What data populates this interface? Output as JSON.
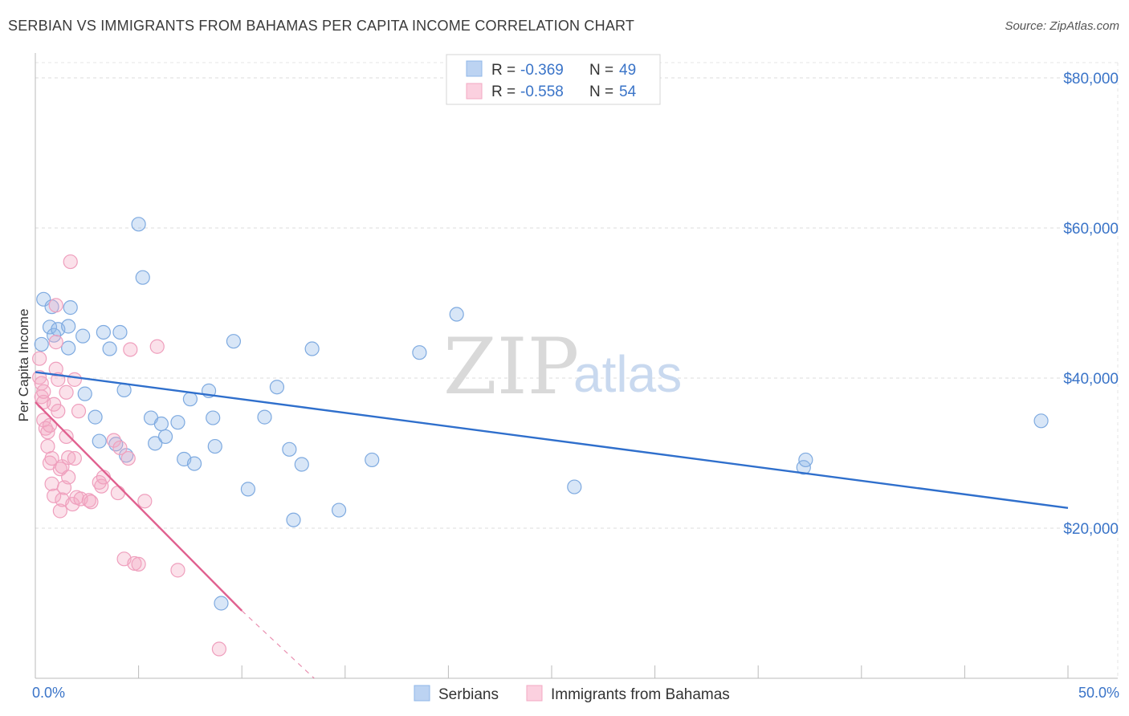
{
  "header": {
    "title": "SERBIAN VS IMMIGRANTS FROM BAHAMAS PER CAPITA INCOME CORRELATION CHART",
    "source": "Source: ZipAtlas.com"
  },
  "watermark": {
    "zip": "ZIP",
    "atlas": "atlas"
  },
  "legend": {
    "r_label": "R =",
    "n_label": "N =",
    "rows": [
      {
        "r": "-0.369",
        "n": "49",
        "color": "#8fb7e8"
      },
      {
        "r": "-0.558",
        "n": "54",
        "color": "#f3a9c3"
      }
    ]
  },
  "chart_data": {
    "type": "scatter",
    "title": "SERBIAN VS IMMIGRANTS FROM BAHAMAS PER CAPITA INCOME CORRELATION CHART",
    "xlabel": "",
    "ylabel": "Per Capita Income",
    "xlim": [
      0,
      50
    ],
    "ylim": [
      0,
      80000
    ],
    "x_tick_labels": [
      "0.0%",
      "50.0%"
    ],
    "y_ticks": [
      20000,
      40000,
      60000,
      80000
    ],
    "y_tick_labels": [
      "$20,000",
      "$40,000",
      "$60,000",
      "$80,000"
    ],
    "grid": true,
    "legend_placement": "top-center",
    "series": [
      {
        "name": "Serbians",
        "color": "#6fa3e0",
        "trend": {
          "x": [
            0,
            50
          ],
          "y": [
            40800,
            22700
          ],
          "color": "#2f6fcc"
        },
        "points": [
          [
            0.3,
            44500
          ],
          [
            0.4,
            50500
          ],
          [
            0.7,
            46800
          ],
          [
            0.8,
            49500
          ],
          [
            0.9,
            45700
          ],
          [
            1.1,
            46500
          ],
          [
            1.6,
            46900
          ],
          [
            1.7,
            49400
          ],
          [
            1.6,
            44000
          ],
          [
            2.3,
            45600
          ],
          [
            2.4,
            37900
          ],
          [
            2.9,
            34800
          ],
          [
            3.1,
            31600
          ],
          [
            3.3,
            46100
          ],
          [
            3.6,
            43900
          ],
          [
            3.9,
            31200
          ],
          [
            4.1,
            46100
          ],
          [
            4.3,
            38400
          ],
          [
            4.4,
            29700
          ],
          [
            5.0,
            60500
          ],
          [
            5.2,
            53400
          ],
          [
            5.6,
            34700
          ],
          [
            5.8,
            31300
          ],
          [
            6.1,
            33900
          ],
          [
            6.3,
            32200
          ],
          [
            6.9,
            34100
          ],
          [
            7.2,
            29200
          ],
          [
            7.5,
            37200
          ],
          [
            7.7,
            28600
          ],
          [
            8.4,
            38300
          ],
          [
            8.6,
            34700
          ],
          [
            8.7,
            30900
          ],
          [
            9.0,
            10000
          ],
          [
            9.6,
            44900
          ],
          [
            10.3,
            25200
          ],
          [
            11.1,
            34800
          ],
          [
            11.7,
            38800
          ],
          [
            12.3,
            30500
          ],
          [
            12.5,
            21100
          ],
          [
            12.9,
            28500
          ],
          [
            13.4,
            43900
          ],
          [
            14.7,
            22400
          ],
          [
            16.3,
            29100
          ],
          [
            18.6,
            43400
          ],
          [
            20.4,
            48500
          ],
          [
            26.1,
            25500
          ],
          [
            37.2,
            28100
          ],
          [
            37.3,
            29100
          ],
          [
            48.7,
            34300
          ]
        ]
      },
      {
        "name": "Immigrants from Bahamas",
        "color": "#f0a3bf",
        "trend": {
          "x": [
            0,
            10
          ],
          "y": [
            36800,
            9000
          ],
          "dash_to": [
            13.5,
            0
          ],
          "color": "#e0608f"
        },
        "points": [
          [
            0.2,
            42600
          ],
          [
            0.2,
            40100
          ],
          [
            0.3,
            39300
          ],
          [
            0.3,
            37500
          ],
          [
            0.4,
            36800
          ],
          [
            0.4,
            38200
          ],
          [
            0.4,
            34400
          ],
          [
            0.5,
            33300
          ],
          [
            0.6,
            32800
          ],
          [
            0.6,
            30900
          ],
          [
            0.7,
            28700
          ],
          [
            0.7,
            33700
          ],
          [
            0.8,
            29300
          ],
          [
            0.8,
            25900
          ],
          [
            0.9,
            24300
          ],
          [
            0.9,
            36500
          ],
          [
            1.0,
            49700
          ],
          [
            1.0,
            44800
          ],
          [
            1.0,
            41200
          ],
          [
            1.1,
            39800
          ],
          [
            1.1,
            35600
          ],
          [
            1.2,
            22300
          ],
          [
            1.2,
            27900
          ],
          [
            1.3,
            23800
          ],
          [
            1.3,
            28200
          ],
          [
            1.4,
            25400
          ],
          [
            1.5,
            32200
          ],
          [
            1.5,
            38100
          ],
          [
            1.6,
            29400
          ],
          [
            1.6,
            26800
          ],
          [
            1.7,
            55500
          ],
          [
            1.8,
            23200
          ],
          [
            1.9,
            39800
          ],
          [
            1.9,
            29300
          ],
          [
            2.0,
            24100
          ],
          [
            2.1,
            35600
          ],
          [
            2.2,
            23900
          ],
          [
            2.6,
            23700
          ],
          [
            3.1,
            26100
          ],
          [
            3.2,
            25600
          ],
          [
            3.3,
            26800
          ],
          [
            3.8,
            31700
          ],
          [
            4.0,
            24700
          ],
          [
            4.1,
            30700
          ],
          [
            4.3,
            15900
          ],
          [
            4.5,
            29300
          ],
          [
            4.6,
            43800
          ],
          [
            4.8,
            15300
          ],
          [
            5.0,
            15200
          ],
          [
            5.3,
            23600
          ],
          [
            5.9,
            44200
          ],
          [
            6.9,
            14400
          ],
          [
            8.9,
            3900
          ],
          [
            2.7,
            23500
          ]
        ]
      }
    ]
  },
  "bottom_legend": {
    "items": [
      {
        "label": "Serbians",
        "color": "#8fb7e8"
      },
      {
        "label": "Immigrants from Bahamas",
        "color": "#f3a9c3"
      }
    ]
  }
}
